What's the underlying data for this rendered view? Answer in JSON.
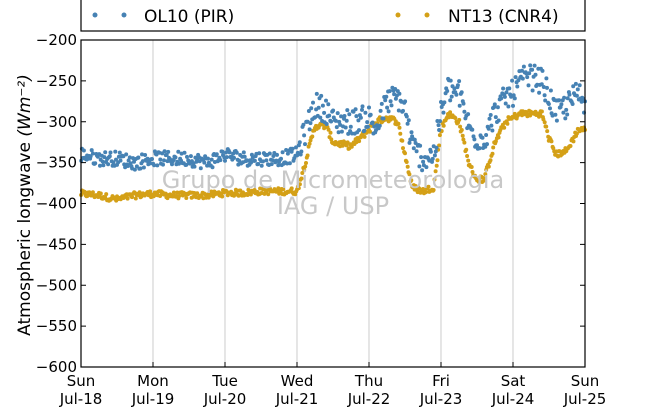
{
  "chart_data": {
    "type": "scatter",
    "ylabel_main": "Atmospheric longwave ",
    "ylabel_units": "(Wm⁻²)",
    "ylim": [
      -600,
      -200
    ],
    "yticks": [
      -600,
      -550,
      -500,
      -450,
      -400,
      -350,
      -300,
      -250,
      -200
    ],
    "xlim": [
      0,
      7
    ],
    "xticks": [
      {
        "x": 0,
        "day": "Sun",
        "date": "Jul-18"
      },
      {
        "x": 1,
        "day": "Mon",
        "date": "Jul-19"
      },
      {
        "x": 2,
        "day": "Tue",
        "date": "Jul-20"
      },
      {
        "x": 3,
        "day": "Wed",
        "date": "Jul-21"
      },
      {
        "x": 4,
        "day": "Thu",
        "date": "Jul-22"
      },
      {
        "x": 5,
        "day": "Fri",
        "date": "Jul-23"
      },
      {
        "x": 6,
        "day": "Sat",
        "date": "Jul-24"
      },
      {
        "x": 7,
        "day": "Sun",
        "date": "Jul-25"
      }
    ],
    "grid": "vertical",
    "legend_position": "top",
    "watermark": [
      "Grupo de Micrometeorologia",
      "IAG / USP"
    ],
    "series": [
      {
        "name": "OL10 (PIR)",
        "color": "#4682b4",
        "x": [
          0,
          0.25,
          0.5,
          0.75,
          1,
          1.25,
          1.5,
          1.75,
          2,
          2.25,
          2.5,
          2.75,
          3,
          3.1,
          3.25,
          3.4,
          3.5,
          3.75,
          4,
          4.1,
          4.25,
          4.4,
          4.5,
          4.6,
          4.75,
          4.9,
          5,
          5.1,
          5.25,
          5.4,
          5.5,
          5.6,
          5.75,
          5.9,
          6,
          6.1,
          6.25,
          6.4,
          6.5,
          6.6,
          6.75,
          6.9,
          7
        ],
        "y": [
          -340,
          -345,
          -345,
          -350,
          -345,
          -345,
          -345,
          -350,
          -340,
          -345,
          -345,
          -345,
          -340,
          -315,
          -280,
          -285,
          -300,
          -300,
          -295,
          -310,
          -275,
          -270,
          -285,
          -330,
          -345,
          -340,
          -290,
          -260,
          -265,
          -310,
          -320,
          -320,
          -290,
          -270,
          -265,
          -250,
          -245,
          -250,
          -270,
          -290,
          -280,
          -265,
          -275
        ]
      },
      {
        "name": "NT13 (CNR4)",
        "color": "#d4a017",
        "x": [
          0,
          0.25,
          0.5,
          0.75,
          1,
          1.25,
          1.5,
          1.75,
          2,
          2.25,
          2.5,
          2.75,
          3,
          3.1,
          3.25,
          3.4,
          3.5,
          3.75,
          4,
          4.1,
          4.25,
          4.4,
          4.5,
          4.6,
          4.75,
          4.9,
          5,
          5.1,
          5.25,
          5.4,
          5.5,
          5.6,
          5.75,
          5.9,
          6,
          6.1,
          6.25,
          6.4,
          6.5,
          6.6,
          6.75,
          6.9,
          7
        ],
        "y": [
          -388,
          -390,
          -395,
          -390,
          -388,
          -390,
          -390,
          -390,
          -387,
          -387,
          -385,
          -385,
          -385,
          -355,
          -305,
          -305,
          -325,
          -330,
          -310,
          -300,
          -295,
          -300,
          -340,
          -380,
          -385,
          -380,
          -310,
          -290,
          -300,
          -355,
          -370,
          -370,
          -325,
          -300,
          -295,
          -290,
          -290,
          -290,
          -320,
          -340,
          -335,
          -310,
          -310
        ]
      }
    ]
  }
}
